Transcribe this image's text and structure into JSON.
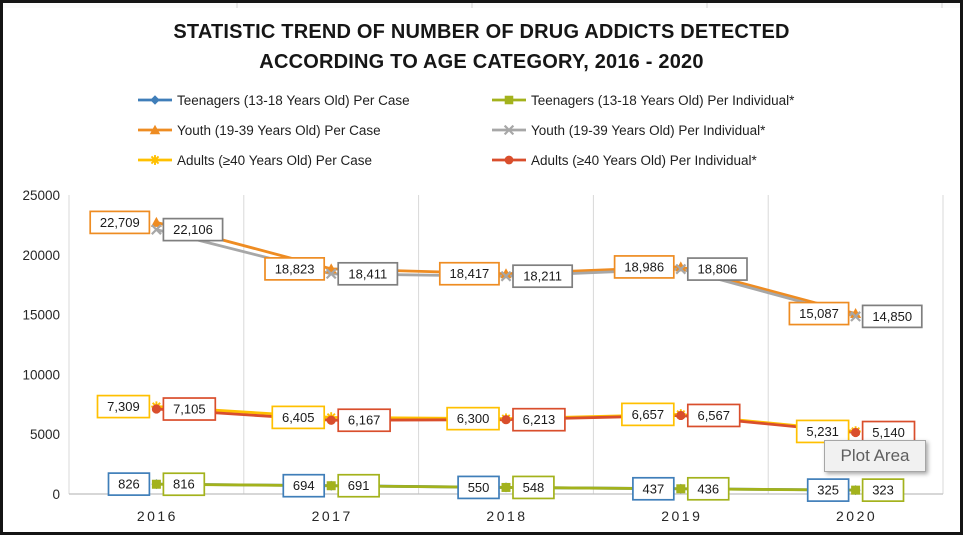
{
  "figure": {
    "title_line1": "STATISTIC TREND OF NUMBER OF DRUG ADDICTS DETECTED",
    "title_line2": "ACCORDING TO AGE CATEGORY, 2016 - 2020",
    "plot_area_tooltip": "Plot Area"
  },
  "chart_data": {
    "type": "line",
    "title": "STATISTIC TREND OF NUMBER OF DRUG ADDICTS DETECTED ACCORDING TO AGE CATEGORY, 2016 - 2020",
    "categories": [
      "2016",
      "2017",
      "2018",
      "2019",
      "2020"
    ],
    "y_ticks": [
      0,
      5000,
      10000,
      15000,
      20000,
      25000
    ],
    "ylim": [
      0,
      25000
    ],
    "grid": "vertical-category-separators",
    "legend_position": "top-two-columns",
    "colors": {
      "axis_line": "#bfbfbf",
      "gridline": "#d9d9d9",
      "label_box_fill": "#ffffff"
    },
    "series": [
      {
        "name": "Teenagers (13-18 Years Old) Per Case",
        "color": "#3f7eb9",
        "label_border": "#3f7eb9",
        "marker": "diamond",
        "label_side": "left",
        "values": [
          826,
          694,
          550,
          437,
          325
        ]
      },
      {
        "name": "Teenagers (13-18 Years Old) Per Individual*",
        "color": "#a3b21c",
        "label_border": "#a3b21c",
        "marker": "square",
        "label_side": "right",
        "values": [
          816,
          691,
          548,
          436,
          323
        ]
      },
      {
        "name": "Youth (19-39 Years Old) Per Case",
        "color": "#ee8c22",
        "label_border": "#ee8c22",
        "marker": "triangle",
        "label_side": "left",
        "values": [
          22709,
          18823,
          18417,
          18986,
          15087
        ]
      },
      {
        "name": "Youth (19-39 Years Old) Per Individual*",
        "color": "#a7a7a7",
        "label_border": "#7f7f7f",
        "marker": "x",
        "label_side": "right",
        "values": [
          22106,
          18411,
          18211,
          18806,
          14850
        ]
      },
      {
        "name": "Adults (≥40 Years Old) Per Case",
        "color": "#ffc000",
        "label_border": "#ffc000",
        "marker": "star",
        "label_side": "left",
        "values": [
          7309,
          6405,
          6300,
          6657,
          5231
        ]
      },
      {
        "name": "Adults (≥40 Years Old) Per Individual*",
        "color": "#d94e2c",
        "label_border": "#d94e2c",
        "marker": "circle",
        "label_side": "right",
        "values": [
          7105,
          6167,
          6213,
          6567,
          5140
        ]
      }
    ]
  }
}
